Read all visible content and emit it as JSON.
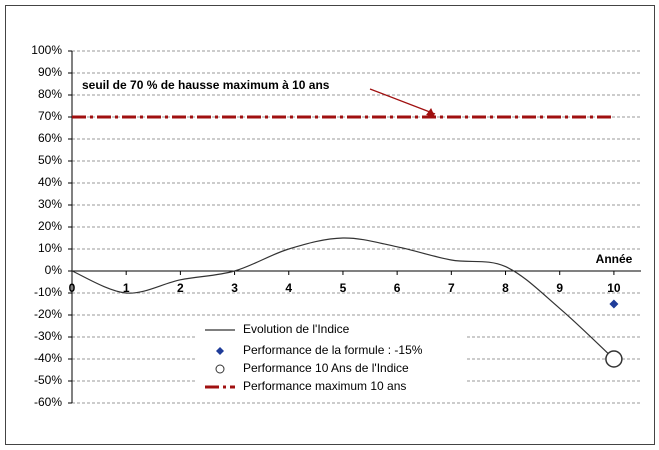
{
  "chart_data": {
    "type": "line",
    "x_label": "Année",
    "xlim": [
      0,
      10.5
    ],
    "xticks": [
      0,
      1,
      2,
      3,
      4,
      5,
      6,
      7,
      8,
      9,
      10
    ],
    "ylim": [
      -60,
      100
    ],
    "yticks": [
      {
        "value": -60,
        "label": "-60%"
      },
      {
        "value": -50,
        "label": "-50%"
      },
      {
        "value": -40,
        "label": "-40%"
      },
      {
        "value": -30,
        "label": "-30%"
      },
      {
        "value": -20,
        "label": "-20%"
      },
      {
        "value": -10,
        "label": "-10%"
      },
      {
        "value": 0,
        "label": "0%"
      },
      {
        "value": 10,
        "label": "10%"
      },
      {
        "value": 20,
        "label": "20%"
      },
      {
        "value": 30,
        "label": "30%"
      },
      {
        "value": 40,
        "label": "40%"
      },
      {
        "value": 50,
        "label": "50%"
      },
      {
        "value": 60,
        "label": "60%"
      },
      {
        "value": 70,
        "label": "70%"
      },
      {
        "value": 80,
        "label": "80%"
      },
      {
        "value": 90,
        "label": "90%"
      },
      {
        "value": 100,
        "label": "100%"
      }
    ],
    "grid": true,
    "series": [
      {
        "name": "Evolution de l'Indice",
        "type": "line",
        "color": "#333333",
        "x": [
          0,
          1,
          2,
          3,
          4,
          5,
          6,
          7,
          8,
          9,
          10
        ],
        "values": [
          0,
          -10,
          -4,
          0,
          10,
          15,
          11,
          5,
          2,
          -17,
          -40
        ]
      },
      {
        "name": "Performance de la formule : -15%",
        "type": "scatter",
        "marker": "diamond",
        "color": "#1f3c99",
        "x": [
          10
        ],
        "values": [
          -15
        ]
      },
      {
        "name": "Performance 10 Ans de l'Indice",
        "type": "scatter",
        "marker": "circle",
        "color": "#333333",
        "x": [
          10
        ],
        "values": [
          -40
        ]
      },
      {
        "name": "Performance maximum 10 ans",
        "type": "line",
        "dash": "dashdot",
        "color": "#a01010",
        "x": [
          0,
          10
        ],
        "values": [
          70,
          70
        ]
      }
    ],
    "annotations": [
      {
        "text": "seuil de 70 % de hausse maximum à 10 ans",
        "x": 6.7,
        "y": 70,
        "color": "#a01010"
      }
    ]
  }
}
